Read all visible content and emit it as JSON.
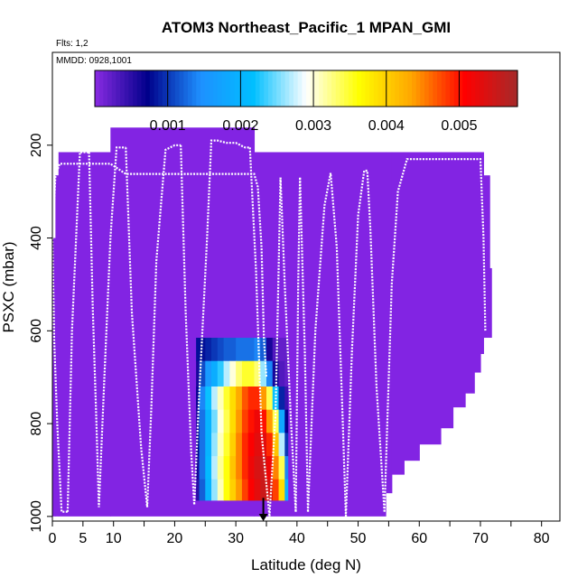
{
  "chart_data": {
    "type": "heatmap",
    "title": "ATOM3 Northeast_Pacific_1 MPAN_GMI",
    "annotations": [
      "Flts: 1,2",
      "MMDD: 0928,1001"
    ],
    "xlabel": "Latitude (deg N)",
    "ylabel": "PSXC (mbar)",
    "xlim": [
      0,
      83
    ],
    "ylim": [
      1010,
      0
    ],
    "xticks": [
      0,
      5,
      10,
      20,
      30,
      40,
      50,
      60,
      70,
      80
    ],
    "xtick_labels": [
      "0",
      "5",
      "10",
      "20",
      "30",
      "40",
      "50",
      "60",
      "70",
      "80"
    ],
    "yticks": [
      200,
      400,
      600,
      800,
      1000
    ],
    "ytick_labels": [
      "200",
      "400",
      "600",
      "800",
      "1000"
    ],
    "colorbar": {
      "range": [
        0,
        0.0058
      ],
      "ticks": [
        0.001,
        0.002,
        0.003,
        0.004,
        0.005
      ],
      "tick_labels": [
        "0.001",
        "0.002",
        "0.003",
        "0.004",
        "0.005"
      ],
      "colors": [
        "#8a2be2",
        "#00008b",
        "#1e90ff",
        "#00bfff",
        "#ffffff",
        "#ffff00",
        "#ffa500",
        "#ff0000",
        "#a52a2a"
      ]
    },
    "background_fill": {
      "color": "#8224e3",
      "regions": [
        {
          "lat": [
            0,
            0.5
          ],
          "p": [
            400,
            1000
          ]
        },
        {
          "lat": [
            0.5,
            1
          ],
          "p": [
            265,
            1000
          ]
        },
        {
          "lat": [
            1,
            9.5
          ],
          "p": [
            215,
            1000
          ]
        },
        {
          "lat": [
            9.5,
            33
          ],
          "p": [
            162,
            1000
          ]
        },
        {
          "lat": [
            33,
            54.5
          ],
          "p": [
            215,
            1000
          ]
        },
        {
          "lat": [
            54.5,
            55.5
          ],
          "p": [
            215,
            950
          ]
        },
        {
          "lat": [
            55.5,
            57.5
          ],
          "p": [
            215,
            910
          ]
        },
        {
          "lat": [
            57.5,
            60
          ],
          "p": [
            215,
            880
          ]
        },
        {
          "lat": [
            60,
            63.5
          ],
          "p": [
            215,
            845
          ]
        },
        {
          "lat": [
            63.5,
            65.5
          ],
          "p": [
            215,
            810
          ]
        },
        {
          "lat": [
            65.5,
            67.5
          ],
          "p": [
            215,
            765
          ]
        },
        {
          "lat": [
            67.5,
            69
          ],
          "p": [
            215,
            735
          ]
        },
        {
          "lat": [
            69,
            70
          ],
          "p": [
            215,
            690
          ]
        },
        {
          "lat": [
            70,
            70.5
          ],
          "p": [
            215,
            650
          ]
        },
        {
          "lat": [
            70.5,
            71.5
          ],
          "p": [
            265,
            615
          ]
        },
        {
          "lat": [
            71.5,
            71.8
          ],
          "p": [
            465,
            615
          ]
        }
      ]
    },
    "highlight_block": {
      "lat_edges": [
        23.5,
        24,
        25,
        26,
        27,
        28,
        29,
        30,
        31,
        32,
        33,
        34,
        35,
        36,
        37,
        38,
        38.5
      ],
      "p_rows": [
        {
          "p": [
            615,
            665
          ],
          "values": [
            0.0008,
            0.0008,
            0.0009,
            0.001,
            0.0011,
            0.0012,
            0.0012,
            0.0013,
            0.0013,
            0.0013,
            0.0014,
            0.0012,
            0.0006,
            0.0003,
            0.0002,
            0.0002
          ]
        },
        {
          "p": [
            665,
            720
          ],
          "values": [
            0.0006,
            0.0011,
            0.0016,
            0.0019,
            0.0023,
            0.0027,
            0.003,
            0.0033,
            0.0035,
            0.0035,
            0.0033,
            0.0026,
            0.0014,
            0.0006,
            0.0003,
            0.0002
          ]
        },
        {
          "p": [
            720,
            770
          ],
          "values": [
            0.0007,
            0.0014,
            0.0022,
            0.0027,
            0.0031,
            0.0035,
            0.0039,
            0.0043,
            0.0047,
            0.0049,
            0.0049,
            0.0044,
            0.0034,
            0.0022,
            0.0009,
            0.0004
          ]
        },
        {
          "p": [
            770,
            820
          ],
          "values": [
            0.0006,
            0.0013,
            0.002,
            0.0025,
            0.003,
            0.0034,
            0.0039,
            0.0044,
            0.0048,
            0.005,
            0.0052,
            0.005,
            0.0044,
            0.0034,
            0.0018,
            0.0007
          ]
        },
        {
          "p": [
            820,
            870
          ],
          "values": [
            0.0007,
            0.0013,
            0.002,
            0.0026,
            0.0031,
            0.0035,
            0.004,
            0.0045,
            0.0049,
            0.0051,
            0.0053,
            0.0053,
            0.0049,
            0.0041,
            0.0027,
            0.001
          ]
        },
        {
          "p": [
            870,
            920
          ],
          "values": [
            0.0006,
            0.0013,
            0.0021,
            0.0027,
            0.0032,
            0.0036,
            0.0041,
            0.0045,
            0.0049,
            0.0052,
            0.0054,
            0.0055,
            0.0052,
            0.0045,
            0.0034,
            0.0014
          ]
        },
        {
          "p": [
            920,
            965
          ],
          "values": [
            0.0005,
            0.0012,
            0.002,
            0.0026,
            0.0031,
            0.0036,
            0.004,
            0.0044,
            0.0048,
            0.0051,
            0.0053,
            0.0055,
            0.0054,
            0.0048,
            0.0039,
            0.0019
          ]
        }
      ]
    },
    "flight_tracks": [
      {
        "lat": [
          0,
          0.5,
          1.2,
          1.5,
          2,
          2.5,
          3,
          6,
          9,
          9.2,
          9.5,
          12,
          15,
          20,
          25,
          29,
          32,
          33,
          33.6,
          34.2,
          34.6,
          35
        ],
        "p": [
          400,
          265,
          240,
          240,
          240,
          240,
          240,
          240,
          240,
          240,
          240,
          262,
          262,
          262,
          262,
          262,
          262,
          262,
          290,
          420,
          620,
          700
        ]
      },
      {
        "lat": [
          0,
          0.3,
          0.8,
          1.5,
          2.5
        ],
        "p": [
          400,
          620,
          800,
          990,
          990
        ]
      },
      {
        "lat": [
          2.5,
          3.2,
          4.5,
          5.5,
          6
        ],
        "p": [
          990,
          600,
          215,
          215,
          215
        ]
      },
      {
        "lat": [
          6,
          6.6,
          7.2,
          7.6,
          8.5,
          9.5,
          10.5,
          11.5,
          12
        ],
        "p": [
          215,
          550,
          800,
          980,
          700,
          400,
          205,
          205,
          205
        ]
      },
      {
        "lat": [
          12,
          13,
          14.5,
          15.5,
          16.2,
          17,
          18.5,
          20,
          21
        ],
        "p": [
          205,
          560,
          850,
          980,
          760,
          450,
          210,
          200,
          200
        ]
      },
      {
        "lat": [
          21,
          21.8,
          22.7,
          23.2,
          24,
          25.3,
          26,
          27,
          28.5,
          30,
          31.5,
          32.3
        ],
        "p": [
          200,
          560,
          860,
          975,
          740,
          400,
          190,
          190,
          195,
          195,
          205,
          205
        ]
      },
      {
        "lat": [
          32.3,
          33.3,
          34.2,
          35.5,
          36.5,
          37,
          37.3
        ],
        "p": [
          205,
          470,
          820,
          1000,
          780,
          470,
          270
        ]
      },
      {
        "lat": [
          37.3,
          38,
          39,
          39.8
        ],
        "p": [
          270,
          500,
          790,
          990
        ]
      },
      {
        "lat": [
          39.8,
          40.2,
          40.5
        ],
        "p": [
          990,
          500,
          270
        ]
      },
      {
        "lat": [
          40.5,
          41.3,
          41.8
        ],
        "p": [
          270,
          650,
          990
        ]
      },
      {
        "lat": [
          41.8,
          43,
          44.5,
          45.5,
          46.5,
          47.5,
          48
        ],
        "p": [
          990,
          600,
          330,
          260,
          420,
          800,
          1000
        ]
      },
      {
        "lat": [
          48,
          49,
          50,
          51,
          51.5,
          52,
          53,
          54.3
        ],
        "p": [
          1000,
          640,
          350,
          255,
          255,
          380,
          720,
          990
        ]
      },
      {
        "lat": [
          54.3,
          55.5,
          56.5,
          58,
          60,
          66,
          70,
          70.5,
          70.8
        ],
        "p": [
          990,
          500,
          300,
          230,
          230,
          230,
          230,
          400,
          600
        ]
      }
    ],
    "marker": {
      "type": "arrow",
      "lat": 34.5,
      "p_from": 960,
      "p_to": 1010
    }
  }
}
